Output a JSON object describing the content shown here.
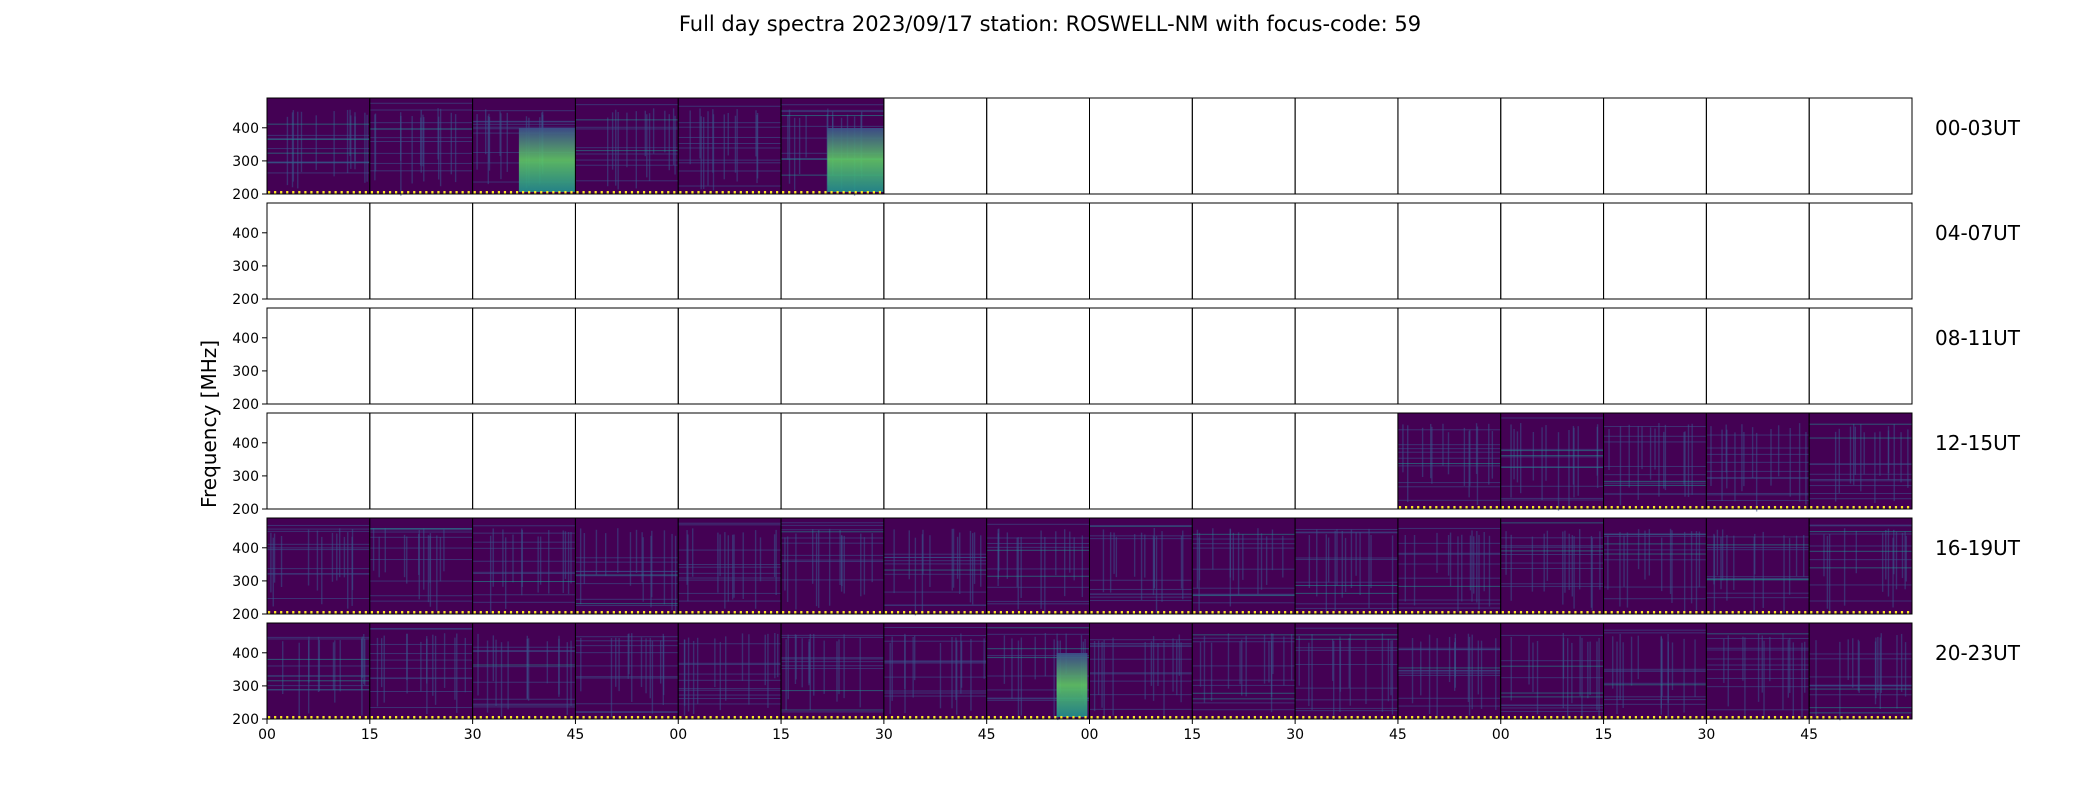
{
  "chart_data": {
    "type": "heatmap",
    "title": "Full day spectra 2023/09/17 station: ROSWELL-NM with focus-code: 59",
    "ylabel": "Frequency [MHz]",
    "xlabel": "",
    "ylim": [
      200,
      490
    ],
    "yticks": [
      200,
      300,
      400
    ],
    "xtick_labels": [
      "00",
      "15",
      "30",
      "45",
      "00",
      "15",
      "30",
      "45",
      "00",
      "15",
      "30",
      "45",
      "00",
      "15",
      "30",
      "45"
    ],
    "panels_per_row": 16,
    "colormap": [
      "#440154",
      "#3b528b",
      "#21908d",
      "#5dc863",
      "#fde725"
    ],
    "rows": [
      {
        "label": "00-03UT",
        "has_data": [
          1,
          1,
          1,
          1,
          1,
          1,
          0,
          0,
          0,
          0,
          0,
          0,
          0,
          0,
          0,
          0
        ],
        "intensity": [
          0.2,
          0.15,
          0.65,
          0.3,
          0.2,
          0.55,
          0,
          0,
          0,
          0,
          0,
          0,
          0,
          0,
          0,
          0
        ]
      },
      {
        "label": "04-07UT",
        "has_data": [
          0,
          0,
          0,
          0,
          0,
          0,
          0,
          0,
          0,
          0,
          0,
          0,
          0,
          0,
          0,
          0
        ],
        "intensity": [
          0,
          0,
          0,
          0,
          0,
          0,
          0,
          0,
          0,
          0,
          0,
          0,
          0,
          0,
          0,
          0
        ]
      },
      {
        "label": "08-11UT",
        "has_data": [
          0,
          0,
          0,
          0,
          0,
          0,
          0,
          0,
          0,
          0,
          0,
          0,
          0,
          0,
          0,
          0
        ],
        "intensity": [
          0,
          0,
          0,
          0,
          0,
          0,
          0,
          0,
          0,
          0,
          0,
          0,
          0,
          0,
          0,
          0
        ]
      },
      {
        "label": "12-15UT",
        "has_data": [
          0,
          0,
          0,
          0,
          0,
          0,
          0,
          0,
          0,
          0,
          0,
          1,
          1,
          1,
          1,
          1
        ],
        "intensity": [
          0,
          0,
          0,
          0,
          0,
          0,
          0,
          0,
          0,
          0,
          0,
          0.15,
          0.15,
          0.15,
          0.15,
          0.15
        ]
      },
      {
        "label": "16-19UT",
        "has_data": [
          1,
          1,
          1,
          1,
          1,
          1,
          1,
          1,
          1,
          1,
          1,
          1,
          1,
          1,
          1,
          1
        ],
        "intensity": [
          0.15,
          0.15,
          0.15,
          0.15,
          0.15,
          0.15,
          0.15,
          0.15,
          0.15,
          0.15,
          0.15,
          0.2,
          0.2,
          0.2,
          0.2,
          0.2
        ]
      },
      {
        "label": "20-23UT",
        "has_data": [
          1,
          1,
          1,
          1,
          1,
          1,
          1,
          1,
          1,
          1,
          1,
          1,
          1,
          1,
          1,
          1
        ],
        "intensity": [
          0.15,
          0.15,
          0.15,
          0.15,
          0.15,
          0.15,
          0.15,
          0.6,
          0.2,
          0.15,
          0.15,
          0.15,
          0.15,
          0.15,
          0.15,
          0.15
        ]
      }
    ]
  }
}
